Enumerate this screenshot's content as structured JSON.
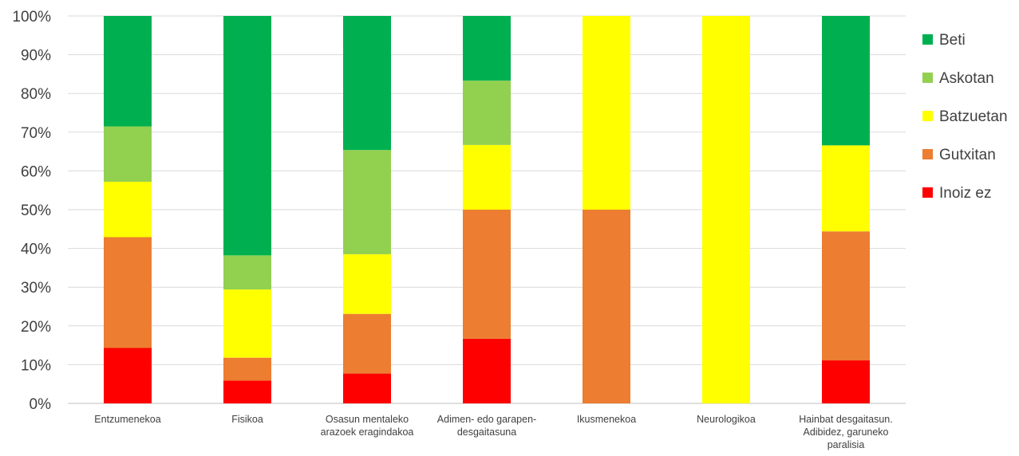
{
  "chart_data": {
    "type": "bar",
    "stacked": true,
    "percent": true,
    "categories": [
      [
        "Entzumenekoa"
      ],
      [
        "Fisikoa"
      ],
      [
        "Osasun mentaleko",
        "arazoek eragindakoa"
      ],
      [
        "Adimen- edo garapen-",
        "desgaitasuna"
      ],
      [
        "Ikusmenekoa"
      ],
      [
        "Neurologikoa"
      ],
      [
        "Hainbat desgaitasun.",
        "Adibidez, garuneko",
        "paralisia"
      ]
    ],
    "series": [
      {
        "name": "Inoiz ez",
        "color": "#FF0000",
        "values": [
          14.3,
          5.9,
          7.7,
          16.7,
          0,
          0,
          11.1
        ]
      },
      {
        "name": "Gutxitan",
        "color": "#ED7D31",
        "values": [
          28.6,
          5.9,
          15.4,
          33.3,
          50,
          0,
          33.3
        ]
      },
      {
        "name": "Batzuetan",
        "color": "#FFFF00",
        "values": [
          14.3,
          17.6,
          15.4,
          16.7,
          50,
          100,
          22.2
        ]
      },
      {
        "name": "Askotan",
        "color": "#92D050",
        "values": [
          14.3,
          8.8,
          26.9,
          16.6,
          0,
          0,
          0
        ]
      },
      {
        "name": "Beti",
        "color": "#00B050",
        "values": [
          28.5,
          61.8,
          34.6,
          16.7,
          0,
          0,
          33.4
        ]
      }
    ],
    "ylim": [
      0,
      100
    ],
    "yticks": [
      "0%",
      "10%",
      "20%",
      "30%",
      "40%",
      "50%",
      "60%",
      "70%",
      "80%",
      "90%",
      "100%"
    ],
    "grid": true,
    "legend": "right",
    "legend_order": [
      "Beti",
      "Askotan",
      "Batzuetan",
      "Gutxitan",
      "Inoiz ez"
    ]
  }
}
